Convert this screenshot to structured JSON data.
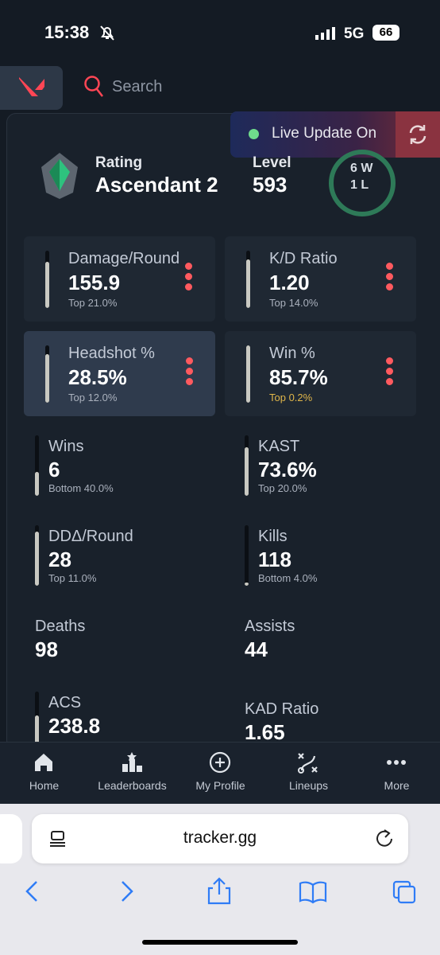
{
  "status_bar": {
    "time": "15:38",
    "network": "5G",
    "battery": "66"
  },
  "search": {
    "placeholder": "Search"
  },
  "live_update": "Live Update On",
  "profile": {
    "rating_label": "Rating",
    "rating": "Ascendant 2",
    "level_label": "Level",
    "level": "593",
    "wins": "6",
    "wins_unit": "W",
    "losses": "1",
    "losses_unit": "L"
  },
  "featured_stats": [
    {
      "label": "Damage/Round",
      "value": "155.9",
      "rank": "Top 21.0%"
    },
    {
      "label": "K/D Ratio",
      "value": "1.20",
      "rank": "Top 14.0%"
    },
    {
      "label": "Headshot %",
      "value": "28.5%",
      "rank": "Top 12.0%"
    },
    {
      "label": "Win %",
      "value": "85.7%",
      "rank": "Top 0.2%"
    }
  ],
  "stats": [
    {
      "label": "Wins",
      "value": "6",
      "rank": "Bottom 40.0%"
    },
    {
      "label": "KAST",
      "value": "73.6%",
      "rank": "Top 20.0%"
    },
    {
      "label": "DDΔ/Round",
      "value": "28",
      "rank": "Top 11.0%"
    },
    {
      "label": "Kills",
      "value": "118",
      "rank": "Bottom 4.0%"
    },
    {
      "label": "Deaths",
      "value": "98"
    },
    {
      "label": "Assists",
      "value": "44"
    },
    {
      "label": "ACS",
      "value": "238.8"
    },
    {
      "label": "KAD Ratio",
      "value": "1.65"
    }
  ],
  "nav": [
    {
      "label": "Home"
    },
    {
      "label": "Leaderboards"
    },
    {
      "label": "My Profile"
    },
    {
      "label": "Lineups"
    },
    {
      "label": "More"
    }
  ],
  "browser": {
    "url": "tracker.gg"
  }
}
